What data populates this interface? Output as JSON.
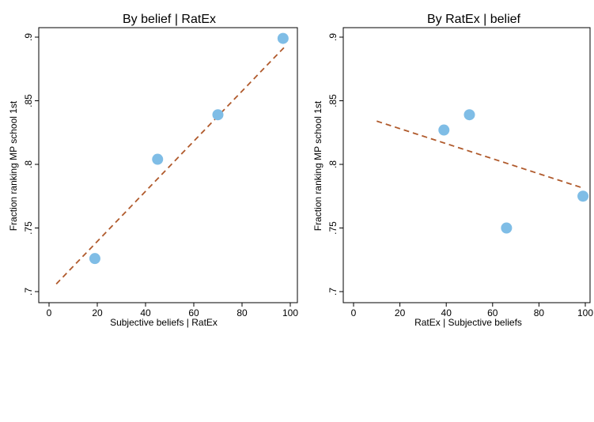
{
  "chart_data": [
    {
      "type": "scatter",
      "title": "By belief | RatEx",
      "xlabel": "Subjective beliefs | RatEx",
      "ylabel": "Fraction ranking MP school 1st",
      "xlim": [
        0,
        100
      ],
      "ylim": [
        0.7,
        0.9
      ],
      "xticks": [
        0,
        20,
        40,
        60,
        80,
        100
      ],
      "yticks": [
        0.7,
        0.75,
        0.8,
        0.85,
        0.9
      ],
      "xtick_labels": [
        "0",
        "20",
        "40",
        "60",
        "80",
        "100"
      ],
      "ytick_labels": [
        ".7",
        ".75",
        ".8",
        ".85",
        ".9"
      ],
      "points": [
        {
          "x": 19,
          "y": 0.726
        },
        {
          "x": 45,
          "y": 0.804
        },
        {
          "x": 70,
          "y": 0.839
        },
        {
          "x": 97,
          "y": 0.899
        }
      ],
      "fit_line": {
        "x": [
          3,
          98
        ],
        "y": [
          0.706,
          0.893
        ]
      },
      "marker_color": "#7fbde6",
      "line_color": "#b05a2c",
      "grid": false
    },
    {
      "type": "scatter",
      "title": "By RatEx | belief",
      "xlabel": "RatEx | Subjective beliefs",
      "ylabel": "Fraction ranking MP school 1st",
      "xlim": [
        0,
        100
      ],
      "ylim": [
        0.7,
        0.9
      ],
      "xticks": [
        0,
        20,
        40,
        60,
        80,
        100
      ],
      "yticks": [
        0.7,
        0.75,
        0.8,
        0.85,
        0.9
      ],
      "xtick_labels": [
        "0",
        "20",
        "40",
        "60",
        "80",
        "100"
      ],
      "ytick_labels": [
        ".7",
        ".75",
        ".8",
        ".85",
        ".9"
      ],
      "points": [
        {
          "x": 39,
          "y": 0.827
        },
        {
          "x": 50,
          "y": 0.839
        },
        {
          "x": 66,
          "y": 0.75
        },
        {
          "x": 99,
          "y": 0.775
        }
      ],
      "fit_line": {
        "x": [
          10,
          98
        ],
        "y": [
          0.834,
          0.782
        ]
      },
      "marker_color": "#7fbde6",
      "line_color": "#b05a2c",
      "grid": false
    }
  ]
}
